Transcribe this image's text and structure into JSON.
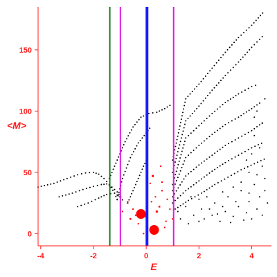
{
  "chart_data": {
    "type": "scatter",
    "title": "",
    "xlabel": "E",
    "ylabel": "<M>",
    "xlim": [
      -4.1,
      4.75
    ],
    "ylim": [
      -10,
      185
    ],
    "xticks": [
      -4,
      -2,
      0,
      2,
      4
    ],
    "yticks": [
      0,
      50,
      100,
      150
    ],
    "xtick_labels": [
      "-4",
      "-2",
      "0",
      "2",
      "4"
    ],
    "ytick_labels": [
      "0",
      "50",
      "100",
      "150"
    ],
    "grid": false,
    "legend": "none",
    "axis_color": "#ff1a1a",
    "vertical_lines": [
      {
        "x": -1.38,
        "color": "#1a7a1a"
      },
      {
        "x": -0.98,
        "color": "#e01ae0"
      },
      {
        "x": 0.03,
        "color": "#1a1aff"
      },
      {
        "x": 1.04,
        "color": "#e01ae0"
      }
    ],
    "curves": [
      {
        "color": "#000000",
        "points": [
          [
            -4.1,
            38
          ],
          [
            -3.5,
            41
          ],
          [
            -3.0,
            45
          ],
          [
            -2.6,
            48
          ],
          [
            -2.3,
            49.5
          ],
          [
            -2.0,
            50
          ],
          [
            -1.8,
            48.5
          ],
          [
            -1.6,
            45
          ],
          [
            -1.4,
            40
          ],
          [
            -1.2,
            33
          ],
          [
            -1.05,
            25
          ]
        ]
      },
      {
        "color": "#000000",
        "points": [
          [
            -3.3,
            30
          ],
          [
            -2.8,
            33
          ],
          [
            -2.4,
            36
          ],
          [
            -2.0,
            38.5
          ],
          [
            -1.7,
            40
          ],
          [
            -1.5,
            40.5
          ],
          [
            -1.3,
            38
          ],
          [
            -1.1,
            34
          ],
          [
            -0.9,
            28
          ]
        ]
      },
      {
        "color": "#000000",
        "points": [
          [
            -2.6,
            22
          ],
          [
            -2.2,
            25
          ],
          [
            -1.8,
            29
          ],
          [
            -1.5,
            32
          ],
          [
            -1.2,
            33
          ],
          [
            -1.0,
            30
          ],
          [
            -0.8,
            25
          ]
        ]
      },
      {
        "color": "#000000",
        "points": [
          [
            -1.4,
            45
          ],
          [
            -1.1,
            60
          ],
          [
            -0.8,
            75
          ],
          [
            -0.5,
            87
          ],
          [
            -0.2,
            95
          ],
          [
            0.1,
            98
          ],
          [
            0.4,
            99
          ],
          [
            0.7,
            102
          ],
          [
            1.0,
            106
          ]
        ]
      },
      {
        "color": "#000000",
        "points": [
          [
            -1.1,
            28
          ],
          [
            -0.9,
            45
          ],
          [
            -0.6,
            62
          ],
          [
            -0.3,
            74
          ],
          [
            0.0,
            82
          ],
          [
            0.2,
            88
          ]
        ]
      },
      {
        "color": "#000000",
        "points": [
          [
            -0.7,
            25
          ],
          [
            -0.4,
            40
          ],
          [
            -0.1,
            55
          ],
          [
            0.1,
            64
          ]
        ]
      },
      {
        "color": "#000000",
        "points": [
          [
            1.0,
            60
          ],
          [
            1.5,
            110
          ],
          [
            2.0,
            122
          ],
          [
            2.5,
            135
          ],
          [
            3.0,
            148
          ],
          [
            3.5,
            160
          ],
          [
            4.0,
            170
          ],
          [
            4.5,
            182
          ]
        ]
      },
      {
        "color": "#000000",
        "points": [
          [
            1.0,
            50
          ],
          [
            1.5,
            92
          ],
          [
            2.0,
            104
          ],
          [
            2.5,
            117
          ],
          [
            3.0,
            129
          ],
          [
            3.5,
            140
          ],
          [
            4.0,
            152
          ],
          [
            4.5,
            163
          ]
        ]
      },
      {
        "color": "#000000",
        "points": [
          [
            1.0,
            40
          ],
          [
            1.5,
            78
          ],
          [
            2.0,
            88
          ],
          [
            2.5,
            98
          ],
          [
            3.0,
            107
          ],
          [
            3.5,
            114
          ],
          [
            4.0,
            120
          ],
          [
            4.3,
            122
          ]
        ]
      },
      {
        "color": "#000000",
        "points": [
          [
            1.0,
            35
          ],
          [
            1.5,
            62
          ],
          [
            2.0,
            72
          ],
          [
            2.5,
            81
          ],
          [
            3.0,
            89
          ],
          [
            3.5,
            95
          ],
          [
            4.0,
            102
          ],
          [
            4.4,
            108
          ]
        ]
      },
      {
        "color": "#000000",
        "points": [
          [
            1.0,
            30
          ],
          [
            1.5,
            47
          ],
          [
            2.0,
            56
          ],
          [
            2.5,
            64
          ],
          [
            3.0,
            72
          ],
          [
            3.5,
            78
          ],
          [
            4.0,
            84
          ],
          [
            4.5,
            92
          ]
        ]
      },
      {
        "color": "#000000",
        "points": [
          [
            1.0,
            25
          ],
          [
            1.5,
            35
          ],
          [
            2.0,
            43
          ],
          [
            2.5,
            51
          ],
          [
            3.0,
            58
          ],
          [
            3.5,
            64
          ],
          [
            4.0,
            70
          ],
          [
            4.5,
            75
          ]
        ]
      },
      {
        "color": "#000000",
        "points": [
          [
            1.1,
            20
          ],
          [
            1.6,
            27
          ],
          [
            2.1,
            33
          ],
          [
            2.6,
            40
          ],
          [
            3.1,
            46
          ],
          [
            3.6,
            52
          ],
          [
            4.1,
            57
          ],
          [
            4.6,
            62
          ]
        ]
      }
    ],
    "scatter_dense": {
      "color": "#000000",
      "points": [
        [
          1.2,
          18
        ],
        [
          1.5,
          22
        ],
        [
          1.8,
          15
        ],
        [
          2.0,
          28
        ],
        [
          2.2,
          12
        ],
        [
          2.4,
          20
        ],
        [
          2.6,
          25
        ],
        [
          2.8,
          10
        ],
        [
          3.0,
          18
        ],
        [
          3.1,
          30
        ],
        [
          3.3,
          14
        ],
        [
          3.5,
          22
        ],
        [
          3.6,
          35
        ],
        [
          3.8,
          17
        ],
        [
          3.9,
          26
        ],
        [
          4.0,
          12
        ],
        [
          4.1,
          40
        ],
        [
          4.2,
          20
        ],
        [
          4.3,
          30
        ],
        [
          4.4,
          15
        ],
        [
          4.5,
          45
        ],
        [
          4.6,
          25
        ],
        [
          1.3,
          12
        ],
        [
          1.6,
          8
        ],
        [
          2.1,
          20
        ],
        [
          2.3,
          30
        ],
        [
          2.7,
          16
        ],
        [
          2.9,
          22
        ],
        [
          3.2,
          9
        ],
        [
          3.4,
          26
        ],
        [
          3.7,
          11
        ],
        [
          3.9,
          33
        ],
        [
          4.2,
          48
        ],
        [
          4.4,
          55
        ],
        [
          4.5,
          35
        ],
        [
          3.8,
          60
        ],
        [
          4.0,
          65
        ],
        [
          4.3,
          70
        ],
        [
          4.1,
          80
        ],
        [
          4.4,
          90
        ],
        [
          4.2,
          100
        ],
        [
          4.5,
          110
        ],
        [
          4.1,
          95
        ],
        [
          3.9,
          50
        ],
        [
          3.6,
          42
        ],
        [
          3.3,
          38
        ],
        [
          2.9,
          34
        ],
        [
          2.5,
          15
        ],
        [
          2.0,
          10
        ],
        [
          1.7,
          30
        ]
      ]
    },
    "scatter_red": {
      "color": "#ff0000",
      "points": [
        {
          "x": -0.2,
          "y": 16,
          "s": 7
        },
        {
          "x": 0.3,
          "y": 3,
          "s": 7
        },
        {
          "x": 0.25,
          "y": 47,
          "s": 3
        },
        {
          "x": 0.15,
          "y": 41,
          "s": 2
        },
        {
          "x": 0.6,
          "y": 35,
          "s": 2
        },
        {
          "x": 0.8,
          "y": 28,
          "s": 2
        },
        {
          "x": 0.5,
          "y": 22,
          "s": 2.5
        },
        {
          "x": 0.75,
          "y": 10,
          "s": 2
        },
        {
          "x": -0.5,
          "y": 20,
          "s": 2
        },
        {
          "x": -0.7,
          "y": 26,
          "s": 2
        },
        {
          "x": -0.9,
          "y": 18,
          "s": 2
        },
        {
          "x": -0.3,
          "y": 8,
          "s": 2
        },
        {
          "x": 0.0,
          "y": 14,
          "s": 3
        },
        {
          "x": 0.4,
          "y": 18,
          "s": 3
        },
        {
          "x": 0.7,
          "y": 5,
          "s": 2
        },
        {
          "x": 1.0,
          "y": 12,
          "s": 2
        },
        {
          "x": -0.6,
          "y": 12,
          "s": 2.5
        },
        {
          "x": 0.2,
          "y": 26,
          "s": 2
        },
        {
          "x": 0.55,
          "y": 55,
          "s": 2
        },
        {
          "x": 0.35,
          "y": 30,
          "s": 2
        },
        {
          "x": -0.1,
          "y": 0,
          "s": 2
        },
        {
          "x": 0.9,
          "y": 20,
          "s": 2
        },
        {
          "x": -0.4,
          "y": 15,
          "s": 2
        },
        {
          "x": 0.6,
          "y": 42,
          "s": 2
        }
      ]
    }
  }
}
